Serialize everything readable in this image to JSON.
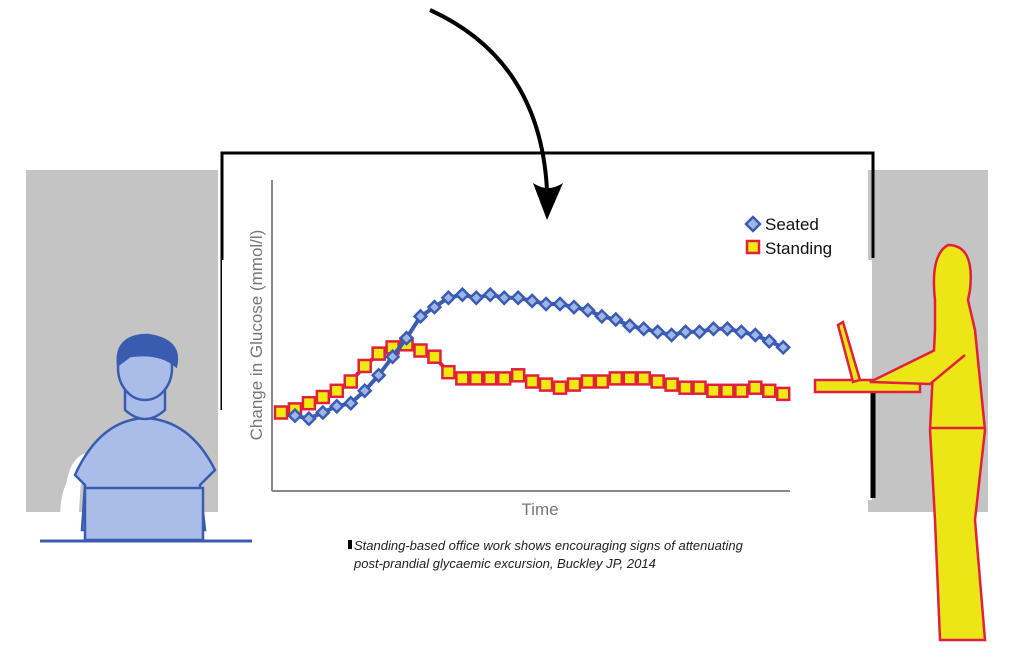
{
  "caption": {
    "line1": "Standing-based office work shows encouraging signs of attenuating",
    "line2": "post-prandial glycaemic excursion, Buckley JP, 2014"
  },
  "colors": {
    "seated": "#3a5cb0",
    "seated_fill": "#9fb5e6",
    "standing_edge": "#e0203c",
    "standing_fill": "#f0ea10",
    "person_left": "#a9bde8",
    "person_right": "#ece617",
    "panel": "#c4c4c4"
  },
  "chart_data": {
    "type": "line",
    "title": "",
    "xlabel": "Time",
    "ylabel": "Change in Glucose (mmol/l)",
    "ylim": [
      0,
      10
    ],
    "grid": false,
    "legend": {
      "placement": "top-right",
      "entries": [
        "Seated",
        "Standing"
      ]
    },
    "series": [
      {
        "name": "Seated",
        "marker": "diamond",
        "x_start": 1,
        "values": [
          2.4,
          2.3,
          2.5,
          2.7,
          2.8,
          3.2,
          3.7,
          4.3,
          4.9,
          5.6,
          5.9,
          6.2,
          6.3,
          6.2,
          6.3,
          6.2,
          6.2,
          6.1,
          6.0,
          6.0,
          5.9,
          5.8,
          5.6,
          5.5,
          5.3,
          5.2,
          5.1,
          5.0,
          5.1,
          5.1,
          5.2,
          5.2,
          5.1,
          5.0,
          4.8,
          4.6
        ]
      },
      {
        "name": "Standing",
        "marker": "square",
        "x_start": 0,
        "values": [
          2.5,
          2.6,
          2.8,
          3.0,
          3.2,
          3.5,
          4.0,
          4.4,
          4.6,
          4.7,
          4.5,
          4.3,
          3.8,
          3.6,
          3.6,
          3.6,
          3.6,
          3.7,
          3.5,
          3.4,
          3.3,
          3.4,
          3.5,
          3.5,
          3.6,
          3.6,
          3.6,
          3.5,
          3.4,
          3.3,
          3.3,
          3.2,
          3.2,
          3.2,
          3.3,
          3.2,
          3.1
        ]
      }
    ]
  }
}
